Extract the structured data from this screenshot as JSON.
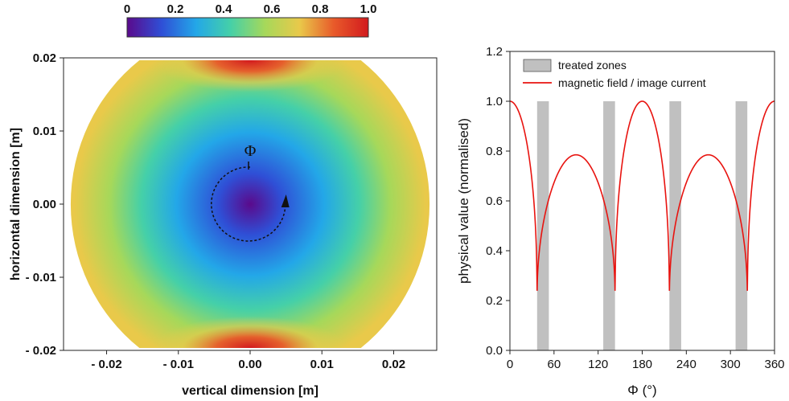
{
  "chart_data": [
    {
      "type": "heatmap",
      "colorbar": {
        "ticks": [
          "0",
          "0.2",
          "0.4",
          "0.6",
          "0.8",
          "1.0"
        ],
        "range": [
          0,
          1
        ],
        "colormap": [
          "#5a0a8c",
          "#2f4fd6",
          "#23a7e8",
          "#45d0a8",
          "#a6d85a",
          "#e9c94a",
          "#e85a2a",
          "#d21a1e"
        ]
      },
      "xlabel": "vertical dimension [m]",
      "ylabel": "horizontal dimension [m]",
      "xlim": [
        -0.026,
        0.026
      ],
      "ylim": [
        -0.02,
        0.02
      ],
      "xticks": [
        {
          "value": -0.02,
          "label": "- 0.02"
        },
        {
          "value": -0.01,
          "label": "- 0.01"
        },
        {
          "value": 0,
          "label": "0.00"
        },
        {
          "value": 0.01,
          "label": "0.01"
        },
        {
          "value": 0.02,
          "label": "0.02"
        }
      ],
      "yticks": [
        {
          "value": 0.02,
          "label": "0.02"
        },
        {
          "value": 0.01,
          "label": "0.01"
        },
        {
          "value": 0,
          "label": "0.00"
        },
        {
          "value": -0.01,
          "label": "- 0.01"
        },
        {
          "value": -0.02,
          "label": "- 0.02"
        }
      ],
      "domain_radius": 0.025,
      "annotation": "Φ"
    },
    {
      "type": "line",
      "xlabel": "Φ (°)",
      "ylabel": "physical value (normalised)",
      "xlim": [
        0,
        360
      ],
      "ylim": [
        0,
        1.2
      ],
      "xticks": [
        0,
        60,
        120,
        180,
        240,
        300,
        360
      ],
      "yticks": [
        "0.0",
        "0.2",
        "0.4",
        "0.6",
        "0.8",
        "1.0",
        "1.2"
      ],
      "series": [
        {
          "name": "treated zones",
          "kind": "bars",
          "color": "#c0c0c0",
          "height": 1.0,
          "intervals": [
            [
              37,
              53
            ],
            [
              127,
              143
            ],
            [
              217,
              233
            ],
            [
              307,
              323
            ]
          ]
        },
        {
          "name": "magnetic field / image current",
          "kind": "line",
          "color": "#e8130f",
          "poles": [
            36.9,
            143.1,
            216.9,
            323.1
          ],
          "pole_min": 0.19,
          "peak_0": 1.0,
          "plateau_90": 0.785
        }
      ]
    }
  ]
}
